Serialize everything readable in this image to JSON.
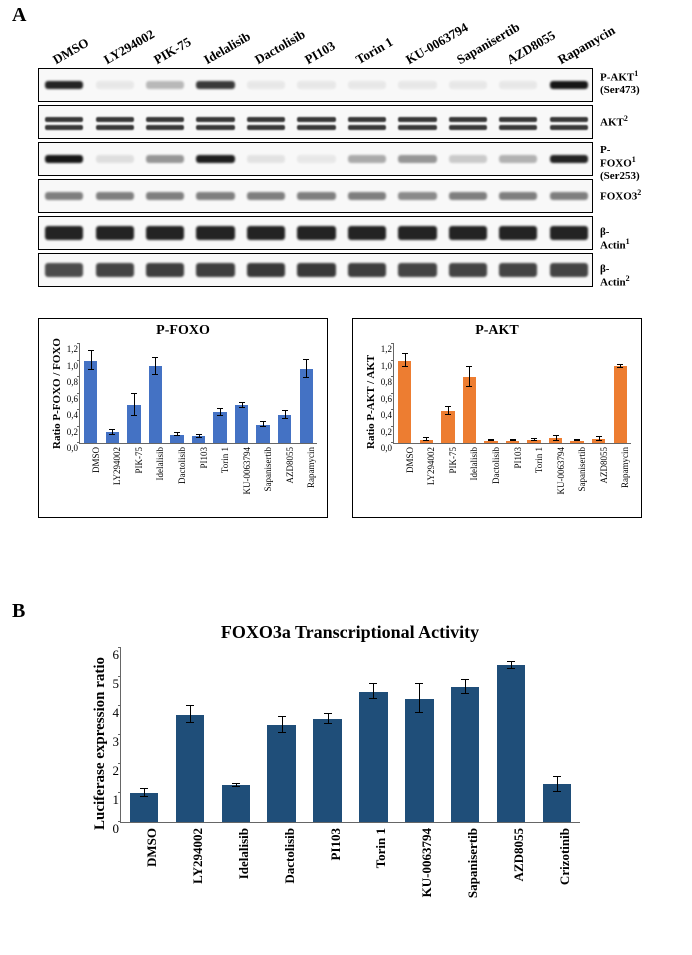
{
  "panelA": {
    "label": "A",
    "drugs": [
      "DMSO",
      "LY294002",
      "PIK-75",
      "Idelalisib",
      "Dactolisib",
      "PI103",
      "Torin 1",
      "KU-0063794",
      "Sapanisertib",
      "AZD8055",
      "Rapamycin"
    ],
    "blotRows": [
      {
        "name": "P-AKT¹",
        "sub": "(Ser473)",
        "intensities": [
          0.9,
          0.04,
          0.3,
          0.82,
          0.03,
          0.03,
          0.03,
          0.05,
          0.03,
          0.04,
          0.95
        ]
      },
      {
        "name": "AKT²",
        "sub": "",
        "intensities": [
          0.6,
          0.6,
          0.6,
          0.6,
          0.6,
          0.6,
          0.6,
          0.6,
          0.6,
          0.6,
          0.6
        ],
        "doublet": true
      },
      {
        "name": "P-FOXO¹",
        "sub": "(Ser253)",
        "intensities": [
          0.95,
          0.12,
          0.45,
          0.92,
          0.1,
          0.08,
          0.36,
          0.45,
          0.22,
          0.33,
          0.9
        ]
      },
      {
        "name": "FOXO3²",
        "sub": "",
        "intensities": [
          0.55,
          0.55,
          0.55,
          0.55,
          0.55,
          0.55,
          0.55,
          0.5,
          0.55,
          0.55,
          0.55
        ]
      },
      {
        "name": "β-Actin¹",
        "sub": "",
        "intensities": [
          0.9,
          0.9,
          0.9,
          0.9,
          0.9,
          0.9,
          0.9,
          0.9,
          0.9,
          0.9,
          0.9
        ],
        "thick": true
      },
      {
        "name": "β-Actin²",
        "sub": "",
        "intensities": [
          0.75,
          0.78,
          0.8,
          0.8,
          0.82,
          0.82,
          0.8,
          0.78,
          0.78,
          0.78,
          0.78
        ],
        "thick": true
      }
    ],
    "pfoxo_chart": {
      "title": "P-FOXO",
      "ylabel": "Ratio P-FOXO / FOXO",
      "categories": [
        "DMSO",
        "LY294002",
        "PIK-75",
        "Idelalisib",
        "Dactolisib",
        "PI103",
        "Torin 1",
        "KU-0063794",
        "Sapanisertib",
        "AZD8055",
        "Rapamycin"
      ],
      "values": [
        1.0,
        0.13,
        0.46,
        0.93,
        0.1,
        0.08,
        0.37,
        0.46,
        0.22,
        0.34,
        0.9
      ],
      "errors": [
        0.12,
        0.03,
        0.13,
        0.1,
        0.02,
        0.02,
        0.04,
        0.03,
        0.03,
        0.05,
        0.11
      ],
      "color": "#4472c4",
      "ylim": [
        0,
        1.2
      ],
      "ytick_step": 0.2
    },
    "pakt_chart": {
      "title": "P-AKT",
      "ylabel": "Ratio P-AKT / AKT",
      "categories": [
        "DMSO",
        "LY294002",
        "PIK-75",
        "Idelalisib",
        "Dactolisib",
        "PI103",
        "Torin 1",
        "KU-0063794",
        "Sapanisertib",
        "AZD8055",
        "Rapamycin"
      ],
      "values": [
        1.0,
        0.04,
        0.39,
        0.8,
        0.03,
        0.03,
        0.04,
        0.06,
        0.03,
        0.05,
        0.93
      ],
      "errors": [
        0.08,
        0.02,
        0.05,
        0.12,
        0.01,
        0.01,
        0.01,
        0.03,
        0.01,
        0.02,
        0.02
      ],
      "color": "#ed7d31",
      "ylim": [
        0,
        1.2
      ],
      "ytick_step": 0.2
    }
  },
  "panelB": {
    "label": "B",
    "title": "FOXO3a Transcriptional Activity",
    "ylabel": "Luciferase expression ratio",
    "categories": [
      "DMSO",
      "LY294002",
      "Idelalisib",
      "Dactolisib",
      "PI103",
      "Torin 1",
      "KU-0063794",
      "Sapanisertib",
      "AZD8055",
      "Crizotinib"
    ],
    "values": [
      1.0,
      3.7,
      1.27,
      3.35,
      3.55,
      4.5,
      4.25,
      4.65,
      5.4,
      1.3
    ],
    "errors": [
      0.15,
      0.3,
      0.05,
      0.28,
      0.17,
      0.25,
      0.5,
      0.25,
      0.12,
      0.25
    ],
    "color": "#1f4e79",
    "ylim": [
      0,
      6
    ],
    "ytick_step": 1
  }
}
